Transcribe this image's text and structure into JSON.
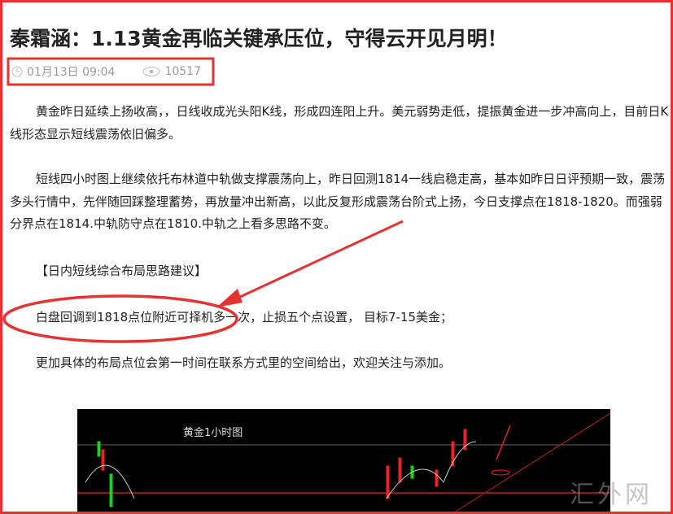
{
  "article": {
    "title": "秦霜涵：1.13黄金再临关键承压位，守得云开见月明！",
    "meta": {
      "datetime": "01月13日 09:04",
      "views": 10517
    },
    "paragraphs": [
      "黄金昨日延续上扬收高，，日线收成光头阳K线，形成四连阳上升。美元弱势走低，提振黄金进一步冲高向上，目前日K线形态显示短线震荡依旧偏多。",
      "短线四小时图上继续依托布林道中轨做支撑震荡向上，昨日回测1814一线启稳走高，基本如昨日日评预期一致，震荡多头行情中，先伴随回踩整理蓄势，再放量冲出新高，以此反复形成震荡台阶式上扬，今日支撑点在1818-1820。而强弱分界点在1814.中轨防守点在1810.中轨之上看多思路不变。",
      "【日内短线综合布局思路建议】",
      "白盘回调到1818点位附近可择机多一次，止损五个点设置， 目标7-15美金；",
      "更加具体的布局点位会第一时间在联系方式里的空间给出，欢迎关注与添加。"
    ],
    "figure": {
      "caption": "黄金1小时图"
    },
    "watermark": "汇外网"
  }
}
